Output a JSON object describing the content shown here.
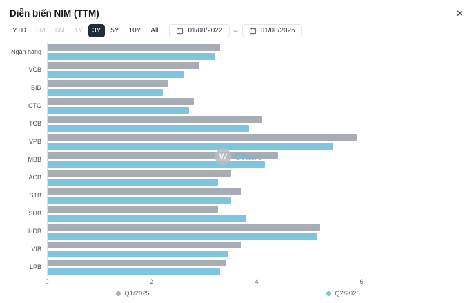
{
  "header": {
    "title": "Diễn biến NIM (TTM)"
  },
  "icons": {
    "close": "✕",
    "calendar": "calendar-outline"
  },
  "toolbar": {
    "range_buttons": [
      {
        "label": "YTD",
        "state": "normal"
      },
      {
        "label": "3M",
        "state": "muted"
      },
      {
        "label": "6M",
        "state": "muted"
      },
      {
        "label": "1Y",
        "state": "muted"
      },
      {
        "label": "3Y",
        "state": "active"
      },
      {
        "label": "5Y",
        "state": "normal"
      },
      {
        "label": "10Y",
        "state": "normal"
      },
      {
        "label": "All",
        "state": "normal"
      }
    ],
    "date_from": "01/08/2022",
    "date_separator": "–",
    "date_to": "01/08/2025"
  },
  "watermark": {
    "initial": "W",
    "text": "Chart"
  },
  "colors": {
    "q1_bar": "#a8adb5",
    "q2_bar": "#7ec5dd",
    "active_button_bg": "#232b36",
    "axis_line": "#dde0e4"
  },
  "chart_data": {
    "type": "bar",
    "orientation": "horizontal",
    "title": "",
    "xlabel": "",
    "ylabel": "",
    "categories": [
      "Ngân hàng",
      "VCB",
      "BID",
      "CTG",
      "TCB",
      "VPB",
      "MBB",
      "ACB",
      "STB",
      "SHB",
      "HDB",
      "VIB",
      "LPB"
    ],
    "series": [
      {
        "name": "Q1/2025",
        "color": "#a8adb5",
        "values": [
          3.3,
          2.9,
          2.3,
          2.8,
          4.1,
          5.9,
          4.4,
          3.5,
          3.7,
          3.25,
          5.2,
          3.7,
          3.4
        ]
      },
      {
        "name": "Q2/2025",
        "color": "#7ec5dd",
        "values": [
          3.2,
          2.6,
          2.2,
          2.7,
          3.85,
          5.45,
          4.15,
          3.25,
          3.5,
          3.8,
          5.15,
          3.45,
          3.3
        ]
      }
    ],
    "xlim": [
      0,
      8
    ],
    "x_ticks": [
      0,
      2,
      4,
      6
    ],
    "grid": false,
    "legend_position": "bottom"
  }
}
